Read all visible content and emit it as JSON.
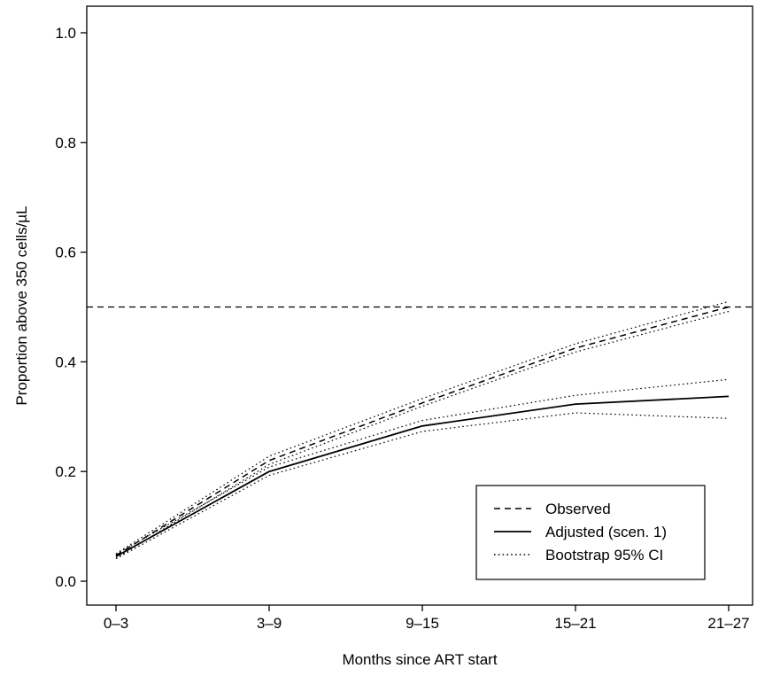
{
  "chart_data": {
    "type": "line",
    "title": "",
    "xlabel": "Months since ART start",
    "ylabel": "Proportion above 350 cells/µL",
    "categories": [
      "0–3",
      "3–9",
      "9–15",
      "15–21",
      "21–27"
    ],
    "ylim": [
      0.0,
      1.0
    ],
    "yticks": [
      0.0,
      0.2,
      0.4,
      0.6,
      0.8,
      1.0
    ],
    "ytick_labels": [
      "0.0",
      "0.2",
      "0.4",
      "0.6",
      "0.8",
      "1.0"
    ],
    "grid": false,
    "legend_position": "bottom-right",
    "reference_lines": [
      {
        "y": 0.5,
        "style": "dashed"
      }
    ],
    "series": [
      {
        "name": "Observed",
        "style": "dashed",
        "color": "#000000",
        "values": [
          0.047,
          0.22,
          0.325,
          0.425,
          0.5
        ]
      },
      {
        "name": "Adjusted (scen. 1)",
        "style": "solid",
        "color": "#000000",
        "values": [
          0.045,
          0.2,
          0.283,
          0.323,
          0.337
        ]
      },
      {
        "name": "Bootstrap 95% CI",
        "style": "dotted",
        "color": "#000000",
        "bands": [
          {
            "lower": [
              0.042,
              0.213,
              0.319,
              0.418,
              0.492
            ],
            "upper": [
              0.05,
              0.228,
              0.333,
              0.433,
              0.51
            ]
          },
          {
            "lower": [
              0.041,
              0.193,
              0.273,
              0.307,
              0.297
            ],
            "upper": [
              0.049,
              0.208,
              0.293,
              0.339,
              0.368
            ]
          }
        ]
      }
    ]
  }
}
